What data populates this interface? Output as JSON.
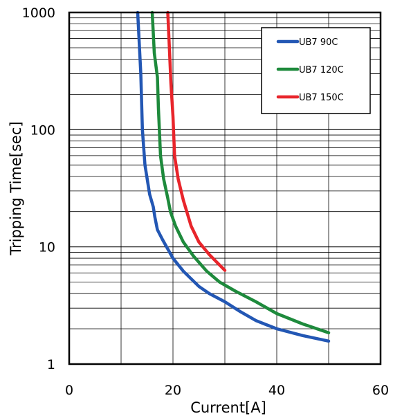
{
  "chart_data": {
    "type": "line",
    "title": "",
    "xlabel": "Current[A]",
    "ylabel": "Tripping Time[sec]",
    "xlim": [
      0,
      60
    ],
    "ylim": [
      1,
      1000
    ],
    "yscale": "log",
    "grid": true,
    "legend_position": "top-right",
    "x_ticks": [
      0,
      20,
      40,
      60
    ],
    "x_tick_labels": [
      "0",
      "20",
      "40",
      "60"
    ],
    "y_ticks": [
      1,
      10,
      100,
      1000
    ],
    "y_tick_labels": [
      "1",
      "10",
      "100",
      "1000"
    ],
    "series": [
      {
        "name": "UB7 90C",
        "color": "#2357b4",
        "points": [
          [
            13.2,
            1000
          ],
          [
            13.8,
            300
          ],
          [
            14.1,
            100
          ],
          [
            14.6,
            50
          ],
          [
            15.5,
            28
          ],
          [
            16.2,
            22
          ],
          [
            16.5,
            18
          ],
          [
            17.0,
            14
          ],
          [
            18.0,
            11.5
          ],
          [
            20.0,
            8
          ],
          [
            22.0,
            6.2
          ],
          [
            25.0,
            4.6
          ],
          [
            27.0,
            4.0
          ],
          [
            30.0,
            3.4
          ],
          [
            33.0,
            2.8
          ],
          [
            36.0,
            2.35
          ],
          [
            40.0,
            2.0
          ],
          [
            45.0,
            1.75
          ],
          [
            50.0,
            1.57
          ]
        ]
      },
      {
        "name": "UB7 120C",
        "color": "#1e8a3c",
        "points": [
          [
            16.0,
            1000
          ],
          [
            16.4,
            450
          ],
          [
            17.0,
            280
          ],
          [
            17.2,
            150
          ],
          [
            17.6,
            60
          ],
          [
            18.2,
            38
          ],
          [
            19.0,
            26
          ],
          [
            19.5,
            20
          ],
          [
            20.5,
            15
          ],
          [
            22.0,
            11
          ],
          [
            24.0,
            8.3
          ],
          [
            26.5,
            6.2
          ],
          [
            29.0,
            5.0
          ],
          [
            32.0,
            4.2
          ],
          [
            36.0,
            3.4
          ],
          [
            40.0,
            2.7
          ],
          [
            45.0,
            2.2
          ],
          [
            50.0,
            1.85
          ]
        ]
      },
      {
        "name": "UB7 150C",
        "color": "#e8252b",
        "points": [
          [
            19.0,
            1000
          ],
          [
            19.3,
            500
          ],
          [
            19.6,
            250
          ],
          [
            20.0,
            130
          ],
          [
            20.3,
            60
          ],
          [
            21.0,
            38
          ],
          [
            22.0,
            25
          ],
          [
            23.5,
            15
          ],
          [
            25.0,
            11
          ],
          [
            27.0,
            8.6
          ],
          [
            30.0,
            6.3
          ]
        ]
      }
    ]
  }
}
